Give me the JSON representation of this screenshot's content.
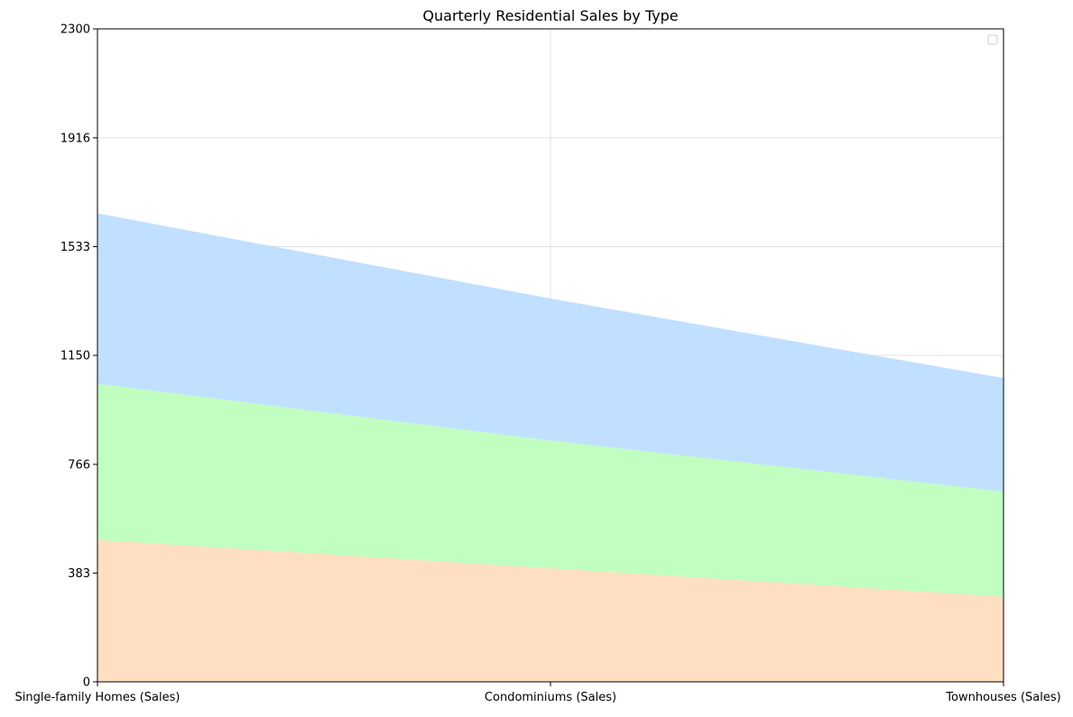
{
  "chart_data": {
    "type": "area",
    "stacked": true,
    "title": "Quarterly Residential Sales by Type",
    "xlabel": "",
    "ylabel": "",
    "categories": [
      "Single-family Homes (Sales)",
      "Condominiums (Sales)",
      "Townhouses (Sales)"
    ],
    "series": [
      {
        "values": [
          500,
          400,
          300
        ],
        "color": "#ffdfc1"
      },
      {
        "values": [
          550,
          450,
          370
        ],
        "color": "#c1ffc1"
      },
      {
        "values": [
          600,
          500,
          400
        ],
        "color": "#c1dfff"
      }
    ],
    "ylim": [
      0,
      2300
    ],
    "yticks": [
      "0",
      "383",
      "766",
      "1150",
      "1533",
      "1916",
      "2300"
    ],
    "ytick_values": [
      0,
      383,
      766,
      1150,
      1533,
      1916,
      2300
    ],
    "grid": true,
    "legend": {
      "position": "top-right",
      "entries": []
    }
  }
}
